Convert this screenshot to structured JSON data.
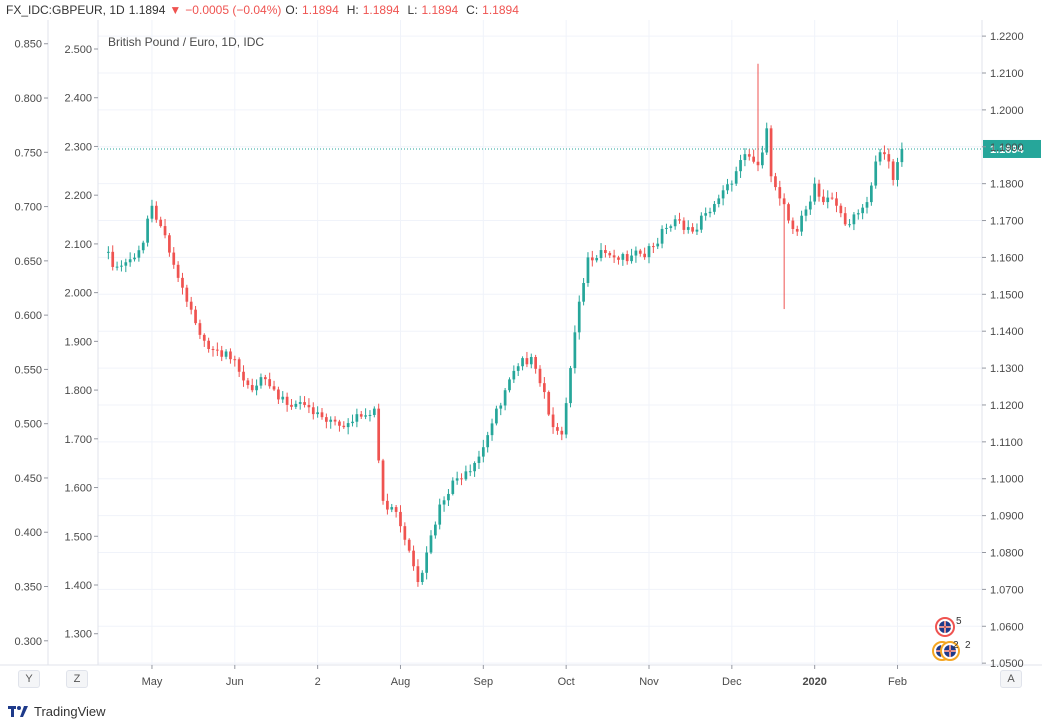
{
  "header": {
    "symbol": "FX_IDC:GBPEUR, 1D",
    "last": "1.1894",
    "arrow": "▼",
    "change": "−0.0005 (−0.04%)",
    "ohlc": [
      {
        "k": "O:",
        "v": "1.1894"
      },
      {
        "k": "H:",
        "v": "1.1894"
      },
      {
        "k": "L:",
        "v": "1.1894"
      },
      {
        "k": "C:",
        "v": "1.1894"
      }
    ]
  },
  "colors": {
    "up": "#26a69a",
    "down": "#ef5350",
    "price_line": "#26a69a",
    "grid": "#f0f3fa"
  },
  "buttons": {
    "y": "Y",
    "z": "Z",
    "a": "A"
  },
  "branding": "TradingView",
  "events": {
    "top_count": "5",
    "bottom_count_a": "2",
    "bottom_count_b": "2"
  },
  "chart_data": {
    "type": "candlestick",
    "title": "British Pound / Euro, 1D, IDC",
    "right_axis": {
      "range": [
        1.0495,
        1.2222
      ],
      "ticks": [
        "1.2200",
        "1.2100",
        "1.2000",
        "1.1900",
        "1.1800",
        "1.1700",
        "1.1600",
        "1.1500",
        "1.1400",
        "1.1300",
        "1.1200",
        "1.1100",
        "1.1000",
        "1.0900",
        "1.0800",
        "1.0700",
        "1.0600",
        "1.0500"
      ]
    },
    "left_axis_1": {
      "range": [
        0.2777,
        0.8645
      ],
      "ticks": [
        "0.850",
        "0.800",
        "0.750",
        "0.700",
        "0.650",
        "0.600",
        "0.550",
        "0.500",
        "0.450",
        "0.400",
        "0.350",
        "0.300"
      ]
    },
    "left_axis_2": {
      "range": [
        1.2358,
        2.5431
      ],
      "ticks": [
        "2.500",
        "2.400",
        "2.300",
        "2.200",
        "2.100",
        "2.000",
        "1.900",
        "1.800",
        "1.700",
        "1.600",
        "1.500",
        "1.400",
        "1.300"
      ]
    },
    "x_range": [
      0,
      200
    ],
    "x_ticks": [
      {
        "label": "May",
        "x": 11
      },
      {
        "label": "Jun",
        "x": 30
      },
      {
        "label": "2",
        "x": 49
      },
      {
        "label": "Aug",
        "x": 68
      },
      {
        "label": "Sep",
        "x": 87
      },
      {
        "label": "Oct",
        "x": 106
      },
      {
        "label": "Nov",
        "x": 125
      },
      {
        "label": "Dec",
        "x": 144
      },
      {
        "label": "2020",
        "x": 163
      },
      {
        "label": "Feb",
        "x": 182
      }
    ],
    "last_price": 1.1894,
    "last_price_label": "1.1894",
    "anchors": [
      [
        0,
        1.1615
      ],
      [
        3,
        1.1575
      ],
      [
        6,
        1.1595
      ],
      [
        9,
        1.164
      ],
      [
        11,
        1.174
      ],
      [
        13,
        1.1685
      ],
      [
        16,
        1.158
      ],
      [
        19,
        1.148
      ],
      [
        22,
        1.139
      ],
      [
        25,
        1.135
      ],
      [
        28,
        1.1345
      ],
      [
        31,
        1.129
      ],
      [
        34,
        1.124
      ],
      [
        37,
        1.127
      ],
      [
        40,
        1.1215
      ],
      [
        43,
        1.1195
      ],
      [
        46,
        1.12
      ],
      [
        49,
        1.118
      ],
      [
        52,
        1.116
      ],
      [
        55,
        1.114
      ],
      [
        58,
        1.1175
      ],
      [
        62,
        1.119
      ],
      [
        64,
        1.094
      ],
      [
        67,
        1.091
      ],
      [
        70,
        1.0805
      ],
      [
        72,
        1.072
      ],
      [
        74,
        1.08
      ],
      [
        77,
        1.093
      ],
      [
        80,
        1.0995
      ],
      [
        83,
        1.102
      ],
      [
        86,
        1.106
      ],
      [
        89,
        1.115
      ],
      [
        92,
        1.124
      ],
      [
        95,
        1.1305
      ],
      [
        98,
        1.133
      ],
      [
        101,
        1.1235
      ],
      [
        103,
        1.114
      ],
      [
        105,
        1.112
      ],
      [
        107,
        1.13
      ],
      [
        109,
        1.148
      ],
      [
        111,
        1.16
      ],
      [
        114,
        1.162
      ],
      [
        117,
        1.16
      ],
      [
        120,
        1.159
      ],
      [
        123,
        1.161
      ],
      [
        126,
        1.163
      ],
      [
        129,
        1.168
      ],
      [
        132,
        1.17
      ],
      [
        135,
        1.167
      ],
      [
        138,
        1.172
      ],
      [
        141,
        1.176
      ],
      [
        144,
        1.18
      ],
      [
        147,
        1.188
      ],
      [
        150,
        1.185
      ],
      [
        152,
        1.195
      ],
      [
        153,
        1.182
      ],
      [
        155,
        1.176
      ],
      [
        157,
        1.17
      ],
      [
        159,
        1.167
      ],
      [
        161,
        1.173
      ],
      [
        163,
        1.18
      ],
      [
        165,
        1.175
      ],
      [
        167,
        1.176
      ],
      [
        169,
        1.172
      ],
      [
        171,
        1.169
      ],
      [
        173,
        1.172
      ],
      [
        175,
        1.175
      ],
      [
        177,
        1.186
      ],
      [
        179,
        1.188
      ],
      [
        181,
        1.181
      ],
      [
        183,
        1.1894
      ]
    ],
    "special_wicks": [
      {
        "x": 150,
        "high": 1.2125
      },
      {
        "x": 156,
        "low": 1.146
      }
    ]
  }
}
